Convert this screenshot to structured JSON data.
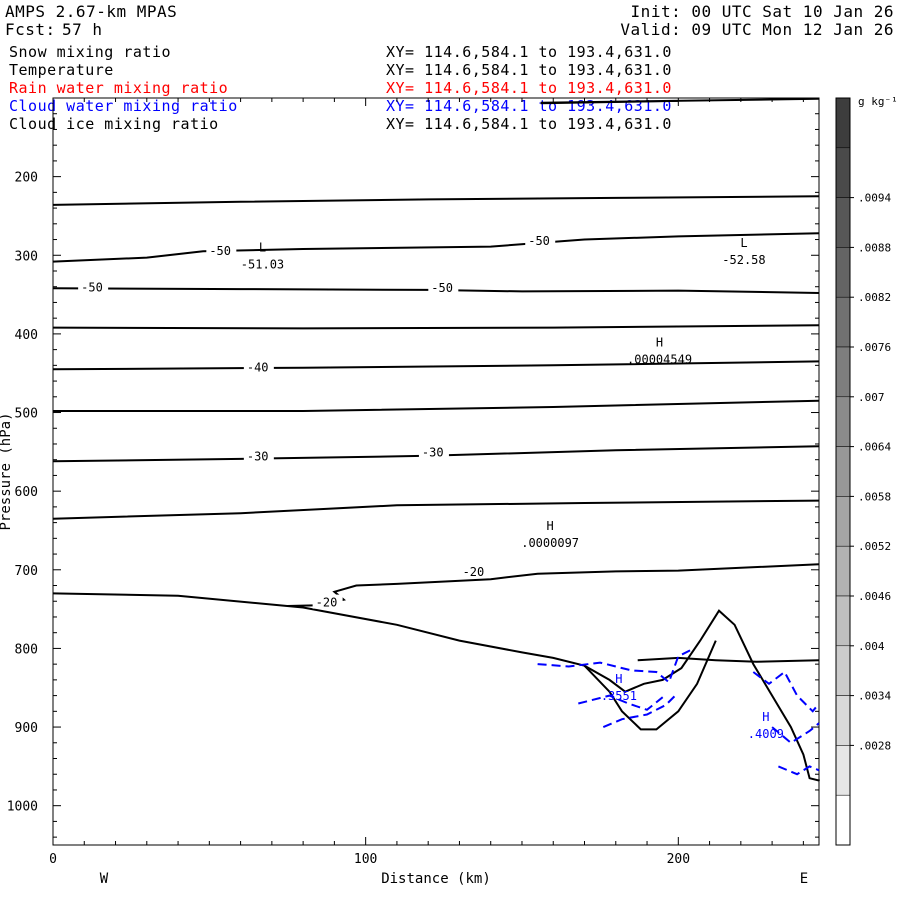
{
  "header": {
    "model": "AMPS 2.67-km MPAS",
    "fcst_label": "Fcst:",
    "fcst_value": "57 h",
    "init": "Init: 00 UTC Sat 10 Jan 26",
    "valid": "Valid: 09 UTC Mon 12 Jan 26"
  },
  "fields": [
    {
      "name": "Snow mixing ratio",
      "xy": "XY= 114.6,584.1 to 193.4,631.0",
      "color": "#000000"
    },
    {
      "name": "Temperature",
      "xy": "XY= 114.6,584.1 to 193.4,631.0",
      "color": "#000000"
    },
    {
      "name": "Rain water mixing ratio",
      "xy": "XY= 114.6,584.1 to 193.4,631.0",
      "color": "#ff0000"
    },
    {
      "name": "Cloud water mixing ratio",
      "xy": "XY= 114.6,584.1 to 193.4,631.0",
      "color": "#0000ff"
    },
    {
      "name": "Cloud ice mixing ratio",
      "xy": "XY= 114.6,584.1 to 193.4,631.0",
      "color": "#000000"
    }
  ],
  "chart_data": {
    "type": "contour-cross-section",
    "xlabel": "Distance (km)",
    "ylabel": "Pressure (hPa)",
    "xlim": [
      0,
      245
    ],
    "ylim": [
      1050,
      100
    ],
    "x_ticks": [
      0,
      100,
      200
    ],
    "y_ticks": [
      200,
      300,
      400,
      500,
      600,
      700,
      800,
      900,
      1000
    ],
    "left_label": "W",
    "right_label": "E",
    "temperature_contours": [
      {
        "level": -55,
        "points": [
          [
            0,
            236
          ],
          [
            60,
            232
          ],
          [
            120,
            229
          ],
          [
            180,
            227
          ],
          [
            245,
            225
          ]
        ]
      },
      {
        "level": -50,
        "points": [
          [
            0,
            308
          ],
          [
            30,
            303
          ],
          [
            48,
            295
          ],
          [
            80,
            292
          ],
          [
            140,
            289
          ],
          [
            170,
            280
          ],
          [
            200,
            276
          ],
          [
            245,
            272
          ]
        ]
      },
      {
        "level": -50,
        "points": [
          [
            0,
            342
          ],
          [
            60,
            343
          ],
          [
            120,
            344
          ],
          [
            150,
            346
          ],
          [
            200,
            345
          ],
          [
            245,
            348
          ]
        ]
      },
      {
        "level": -45,
        "points": [
          [
            0,
            392
          ],
          [
            80,
            393
          ],
          [
            160,
            392
          ],
          [
            245,
            389
          ]
        ]
      },
      {
        "level": -40,
        "points": [
          [
            0,
            445
          ],
          [
            80,
            443
          ],
          [
            160,
            440
          ],
          [
            245,
            435
          ]
        ]
      },
      {
        "level": -35,
        "points": [
          [
            0,
            498
          ],
          [
            80,
            498
          ],
          [
            160,
            493
          ],
          [
            245,
            485
          ]
        ]
      },
      {
        "level": -30,
        "points": [
          [
            0,
            562
          ],
          [
            60,
            559
          ],
          [
            120,
            555
          ],
          [
            180,
            548
          ],
          [
            245,
            543
          ]
        ]
      },
      {
        "level": -25,
        "points": [
          [
            0,
            635
          ],
          [
            60,
            628
          ],
          [
            110,
            618
          ],
          [
            170,
            615
          ],
          [
            245,
            612
          ]
        ]
      },
      {
        "level": -20,
        "points": [
          [
            75,
            746
          ],
          [
            85,
            745
          ],
          [
            93,
            738
          ],
          [
            90,
            728
          ],
          [
            97,
            720
          ],
          [
            110,
            718
          ],
          [
            140,
            712
          ],
          [
            155,
            705
          ],
          [
            180,
            702
          ],
          [
            200,
            701
          ],
          [
            245,
            693
          ]
        ]
      }
    ],
    "terrain": {
      "label": "surface",
      "points": [
        [
          0,
          730
        ],
        [
          40,
          733
        ],
        [
          80,
          748
        ],
        [
          110,
          770
        ],
        [
          130,
          790
        ],
        [
          150,
          805
        ],
        [
          160,
          812
        ],
        [
          170,
          822
        ],
        [
          178,
          840
        ],
        [
          183,
          855
        ],
        [
          189,
          845
        ],
        [
          195,
          840
        ],
        [
          201,
          825
        ],
        [
          207,
          790
        ],
        [
          213,
          752
        ],
        [
          218,
          770
        ],
        [
          224,
          820
        ],
        [
          230,
          860
        ],
        [
          236,
          900
        ],
        [
          240,
          935
        ],
        [
          242,
          965
        ],
        [
          245,
          968
        ]
      ]
    },
    "contour_labels": [
      {
        "text": "-50",
        "x": 50,
        "y": 296
      },
      {
        "text": "-50",
        "x": 152,
        "y": 283
      },
      {
        "text": "-50",
        "x": 9,
        "y": 342
      },
      {
        "text": "-50",
        "x": 121,
        "y": 343
      },
      {
        "text": "-40",
        "x": 62,
        "y": 444
      },
      {
        "text": "-30",
        "x": 62,
        "y": 557
      },
      {
        "text": "-30",
        "x": 118,
        "y": 552
      },
      {
        "text": "-20",
        "x": 131,
        "y": 704
      },
      {
        "text": "-20",
        "x": 84,
        "y": 743
      }
    ],
    "extrema": [
      {
        "mark": "L",
        "value": "-51.03",
        "x": 67,
        "y": 313,
        "color": "#000000"
      },
      {
        "mark": "L",
        "value": "-52.58",
        "x": 221,
        "y": 307,
        "color": "#000000"
      },
      {
        "mark": "H",
        "value": ".00004549",
        "x": 194,
        "y": 434,
        "color": "#000000"
      },
      {
        "mark": "H",
        "value": ".0000097",
        "x": 159,
        "y": 667,
        "color": "#000000"
      },
      {
        "mark": "H",
        "value": ".3551",
        "x": 181,
        "y": 862,
        "color": "#0000ff"
      },
      {
        "mark": "H",
        "value": ".4009",
        "x": 228,
        "y": 910,
        "color": "#0000ff"
      }
    ],
    "cloud_water_contours": [
      {
        "points": [
          [
            155,
            820
          ],
          [
            165,
            823
          ],
          [
            175,
            818
          ],
          [
            185,
            828
          ],
          [
            193,
            830
          ],
          [
            197,
            843
          ],
          [
            200,
            810
          ],
          [
            204,
            802
          ]
        ]
      },
      {
        "points": [
          [
            168,
            870
          ],
          [
            178,
            860
          ],
          [
            184,
            870
          ],
          [
            190,
            878
          ],
          [
            195,
            862
          ]
        ]
      },
      {
        "points": [
          [
            176,
            900
          ],
          [
            182,
            890
          ],
          [
            190,
            884
          ],
          [
            196,
            872
          ],
          [
            199,
            860
          ]
        ]
      },
      {
        "points": [
          [
            224,
            830
          ],
          [
            229,
            845
          ],
          [
            234,
            830
          ],
          [
            238,
            860
          ],
          [
            243,
            880
          ],
          [
            245,
            870
          ]
        ]
      },
      {
        "points": [
          [
            230,
            900
          ],
          [
            236,
            920
          ],
          [
            242,
            905
          ],
          [
            245,
            895
          ]
        ]
      },
      {
        "points": [
          [
            232,
            950
          ],
          [
            238,
            960
          ],
          [
            242,
            950
          ],
          [
            245,
            955
          ]
        ]
      }
    ],
    "colorbar": {
      "unit": "g kg⁻¹",
      "labels": [
        ".0094",
        ".0088",
        ".0082",
        ".0076",
        ".007",
        ".0064",
        ".0058",
        ".0052",
        ".0046",
        ".004",
        ".0034",
        ".0028"
      ],
      "colors": [
        "#3d3d3d",
        "#4a4a4a",
        "#575757",
        "#646464",
        "#717171",
        "#7e7e7e",
        "#8b8b8b",
        "#989898",
        "#a5a5a5",
        "#b2b2b2",
        "#bfbfbf",
        "#cccccc",
        "#d9d9d9",
        "#e6e6e6",
        "#ffffff"
      ]
    }
  }
}
